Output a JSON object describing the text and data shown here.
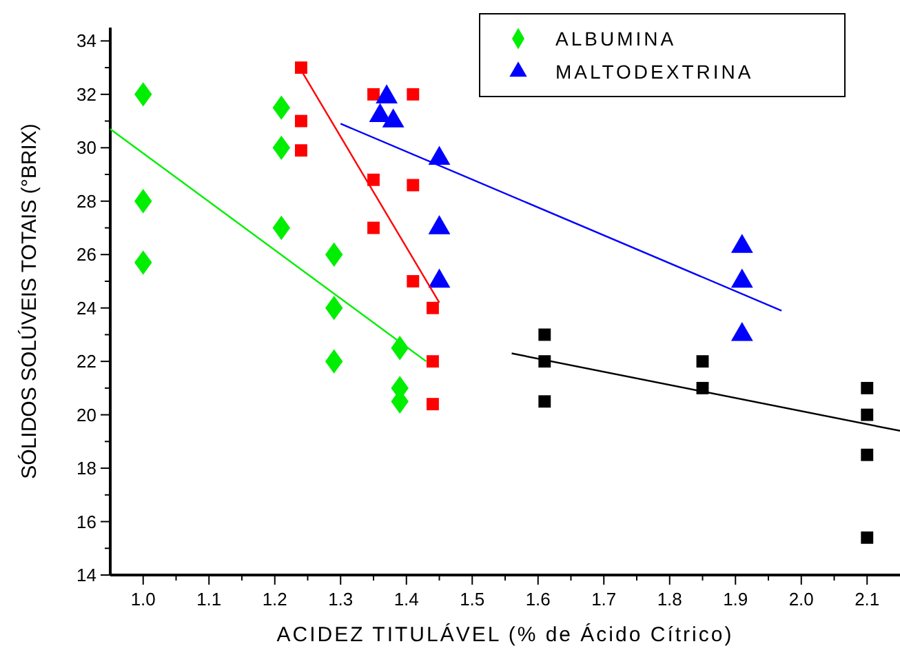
{
  "chart_data": {
    "type": "scatter",
    "xlabel": "ACIDEZ TITULÁVEL (% de Ácido Cítrico)",
    "ylabel": "SÓLIDOS SOLÚVEIS TOTAIS (°BRIX)",
    "xlim": [
      0.95,
      2.15
    ],
    "ylim": [
      14,
      34.5
    ],
    "xticks": [
      {
        "value": 1,
        "label": "1.0"
      },
      {
        "value": 1.05,
        "label": null
      },
      {
        "value": 1.1,
        "label": "1.1"
      },
      {
        "value": 1.15,
        "label": null
      },
      {
        "value": 1.2,
        "label": "1.2"
      },
      {
        "value": 1.25,
        "label": null
      },
      {
        "value": 1.3,
        "label": "1.3"
      },
      {
        "value": 1.35,
        "label": null
      },
      {
        "value": 1.4,
        "label": "1.4"
      },
      {
        "value": 1.45,
        "label": null
      },
      {
        "value": 1.5,
        "label": "1.5"
      },
      {
        "value": 1.55,
        "label": null
      },
      {
        "value": 1.6,
        "label": "1.6"
      },
      {
        "value": 1.65,
        "label": null
      },
      {
        "value": 1.7,
        "label": "1.7"
      },
      {
        "value": 1.75,
        "label": null
      },
      {
        "value": 1.8,
        "label": "1.8"
      },
      {
        "value": 1.85,
        "label": null
      },
      {
        "value": 1.9,
        "label": "1.9"
      },
      {
        "value": 1.95,
        "label": null
      },
      {
        "value": 2.0,
        "label": "2.0"
      },
      {
        "value": 2.05,
        "label": null
      },
      {
        "value": 2.1,
        "label": "2.1"
      }
    ],
    "yticks": [
      14,
      {
        "value": 15,
        "label": null
      },
      16,
      {
        "value": 17,
        "label": null
      },
      18,
      {
        "value": 19,
        "label": null
      },
      20,
      {
        "value": 21,
        "label": null
      },
      22,
      {
        "value": 23,
        "label": null
      },
      24,
      {
        "value": 25,
        "label": null
      },
      26,
      {
        "value": 27,
        "label": null
      },
      28,
      {
        "value": 29,
        "label": null
      },
      30,
      {
        "value": 31,
        "label": null
      },
      32,
      {
        "value": 33,
        "label": null
      },
      34
    ],
    "grid": false,
    "legend": "top right",
    "series": [
      {
        "marker": "square",
        "color": "#ff0000",
        "x": [
          1.24,
          1.24,
          1.24,
          1.35,
          1.35,
          1.35,
          1.41,
          1.41,
          1.41,
          1.44,
          1.44,
          1.44
        ],
        "values": [
          33,
          31,
          29.9,
          32,
          28.8,
          27,
          32,
          28.6,
          25,
          24,
          22,
          20.4
        ]
      },
      {
        "name": "ALBUMINA",
        "marker": "diamond",
        "color": "#00ee00",
        "x": [
          1.0,
          1.0,
          1.0,
          1.21,
          1.21,
          1.21,
          1.29,
          1.29,
          1.29,
          1.39,
          1.39,
          1.39
        ],
        "values": [
          32,
          28,
          25.7,
          31.5,
          30,
          27,
          26,
          24,
          22,
          22.5,
          21,
          20.5
        ]
      },
      {
        "name": "MALTODEXTRINA",
        "marker": "triangle",
        "color": "#0000ff",
        "x": [
          1.37,
          1.38,
          1.36,
          1.45,
          1.45,
          1.45,
          1.91,
          1.91,
          1.91
        ],
        "values": [
          31.9,
          31,
          31.2,
          29.6,
          27,
          25,
          26.3,
          25,
          23
        ]
      },
      {
        "marker": "square",
        "color": "#000000",
        "x": [
          1.61,
          1.61,
          1.61,
          1.85,
          1.85,
          2.1,
          2.1,
          2.1,
          2.1
        ],
        "values": [
          23,
          22,
          20.5,
          22,
          21,
          21,
          20,
          18.5,
          15.4
        ]
      },
      {
        "type": "line",
        "color": "#ff0000",
        "x": [
          1.24,
          1.45
        ],
        "values": [
          32.9,
          24.2
        ]
      },
      {
        "type": "line",
        "color": "#00ee00",
        "x": [
          0.95,
          1.43
        ],
        "values": [
          30.7,
          22
        ]
      },
      {
        "type": "line",
        "color": "#0000ff",
        "x": [
          1.3,
          1.97
        ],
        "values": [
          30.9,
          23.9
        ]
      },
      {
        "type": "line",
        "color": "#000000",
        "x": [
          1.56,
          2.15
        ],
        "values": [
          22.3,
          19.4
        ]
      }
    ]
  }
}
